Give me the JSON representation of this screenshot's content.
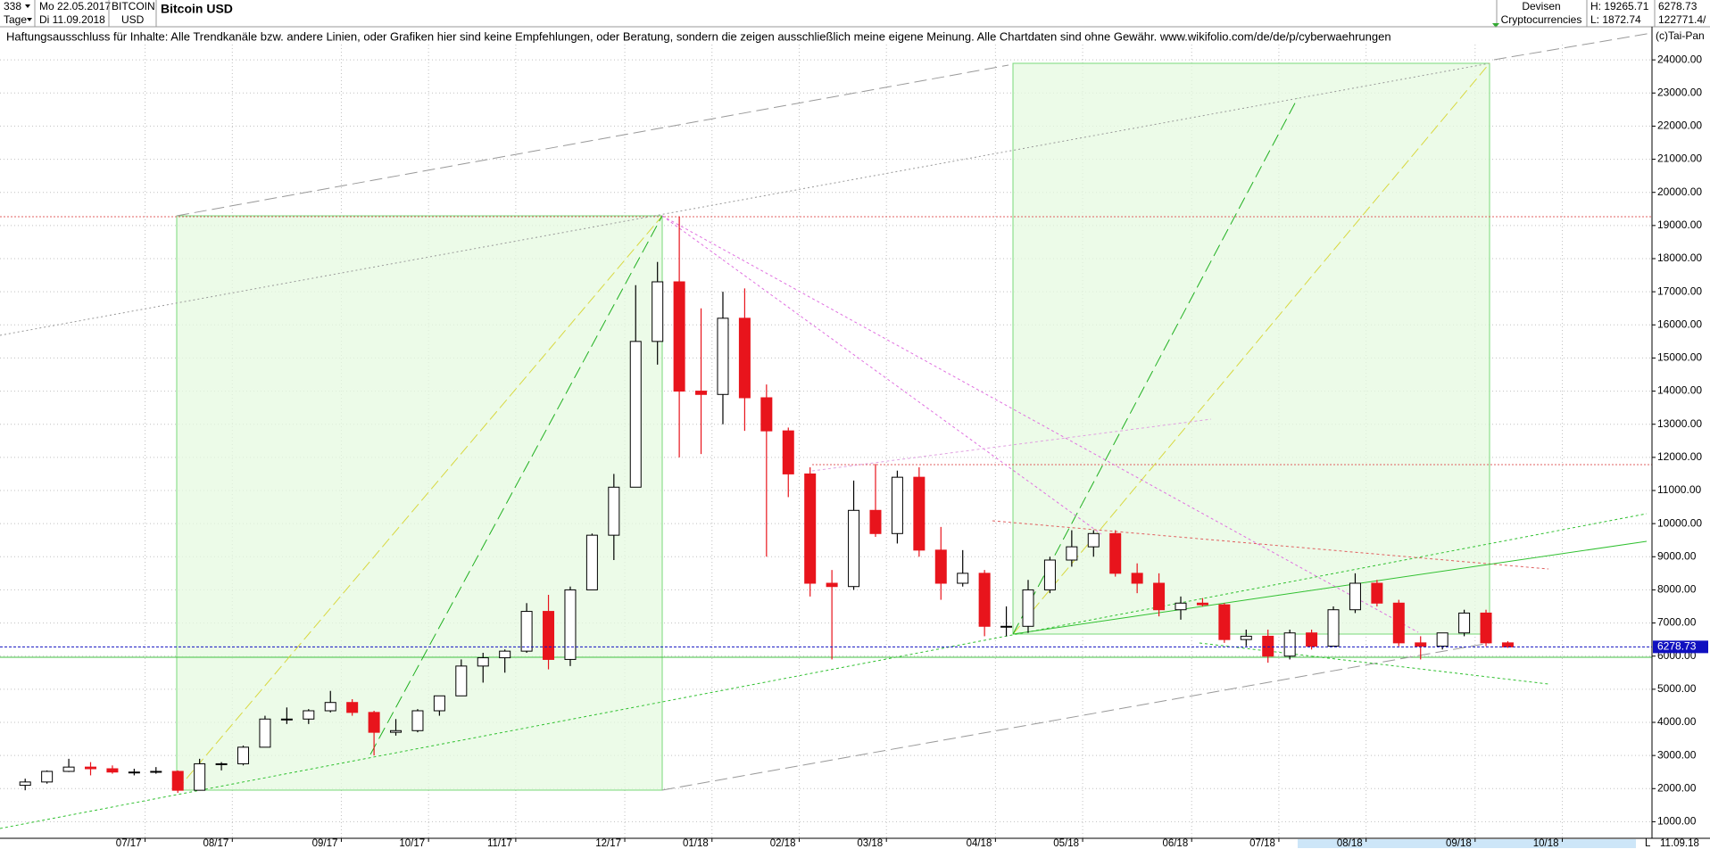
{
  "header": {
    "count": "338",
    "date_from": "Mo 22.05.2017",
    "period": "Tage",
    "date_to": "Di 11.09.2018",
    "symbol": "BITCOIN",
    "currency": "USD",
    "market": "Devisen",
    "group": "Cryptocurrencies",
    "high": "H: 19265.71",
    "low": "L: 1872.74",
    "last": "6278.73",
    "volume": "122771.4/"
  },
  "chart_data": {
    "type": "candlestick",
    "title": "Bitcoin USD",
    "subtitle": "Haftungsausschluss für Inhalte: Alle Trendkanäle bzw. andere Linien, oder Grafiken hier sind keine Empfehlungen, oder Beratung, sondern die zeigen ausschließlich meine eigene Meinung. Alle Chartdaten sind ohne Gewähr.  www.wikifolio.com/de/de/p/cyberwaehrungen",
    "source": "(c)Tai-Pan",
    "categories": [
      null,
      null,
      null,
      null,
      null,
      null,
      "07/17",
      null,
      null,
      null,
      "08/17",
      null,
      null,
      null,
      null,
      "09/17",
      null,
      null,
      null,
      "10/17",
      null,
      null,
      null,
      "11/17",
      null,
      null,
      null,
      null,
      "12/17",
      null,
      null,
      null,
      "01/18",
      null,
      null,
      null,
      "02/18",
      null,
      null,
      null,
      "03/18",
      null,
      null,
      null,
      null,
      "04/18",
      null,
      null,
      null,
      "05/18",
      null,
      null,
      null,
      null,
      "06/18",
      null,
      null,
      null,
      "07/18",
      null,
      null,
      null,
      "08/18",
      null,
      null,
      null,
      null,
      "09/18",
      null,
      null,
      null,
      "10/18"
    ],
    "open": [
      2100,
      2200,
      2520,
      2650,
      2600,
      2500,
      2500,
      2520,
      1950,
      2750,
      2750,
      3250,
      4100,
      4100,
      4350,
      4600,
      4300,
      3700,
      3750,
      4350,
      4800,
      5700,
      5950,
      6150,
      7350,
      5900,
      8000,
      9650,
      11100,
      15500,
      17300,
      14000,
      13900,
      16200,
      13800,
      12800,
      11500,
      8200,
      8100,
      10400,
      9700,
      11400,
      9200,
      8200,
      8500,
      6900,
      6900,
      8000,
      8900,
      9300,
      9700,
      8500,
      8200,
      7400,
      7600,
      7550,
      6500,
      6600,
      6000,
      6700,
      6300,
      7400,
      8200,
      7600,
      6400,
      6300,
      6700,
      7300,
      6400,
      null,
      null,
      null
    ],
    "high": [
      2300,
      2550,
      2900,
      2800,
      2700,
      2600,
      2650,
      2550,
      2900,
      2800,
      3300,
      4200,
      4450,
      4400,
      4950,
      4700,
      4350,
      4100,
      4400,
      4800,
      5900,
      6100,
      6200,
      7600,
      7850,
      8100,
      9700,
      11500,
      17200,
      17900,
      19265.71,
      16500,
      17000,
      17100,
      14200,
      12900,
      11700,
      8600,
      11300,
      11800,
      11600,
      11700,
      9900,
      9200,
      8600,
      7500,
      8300,
      9000,
      9800,
      9800,
      9800,
      8800,
      8500,
      7800,
      7750,
      7600,
      6800,
      6800,
      6800,
      6800,
      7500,
      8500,
      8300,
      7700,
      6600,
      6700,
      7400,
      7400,
      6450,
      null,
      null,
      null
    ],
    "low": [
      1950,
      2150,
      2500,
      2400,
      2450,
      2400,
      2450,
      1872.74,
      1950,
      2550,
      2700,
      3250,
      3950,
      3950,
      4300,
      4200,
      3000,
      3600,
      3700,
      4200,
      4800,
      5200,
      5500,
      6100,
      5600,
      5700,
      8000,
      8900,
      11100,
      14800,
      12000,
      12100,
      13000,
      12800,
      9000,
      10800,
      7800,
      5900,
      8000,
      9600,
      9400,
      9000,
      7700,
      8100,
      6600,
      6600,
      6700,
      7900,
      8700,
      9000,
      8400,
      7900,
      7200,
      7100,
      7500,
      6400,
      6300,
      5800,
      5900,
      6200,
      6300,
      7300,
      7500,
      6300,
      5900,
      6200,
      6600,
      6300,
      6250,
      null,
      null,
      null
    ],
    "close": [
      2200,
      2520,
      2650,
      2600,
      2500,
      2500,
      2520,
      1950,
      2750,
      2750,
      3250,
      4100,
      4100,
      4350,
      4600,
      4300,
      3700,
      3750,
      4350,
      4800,
      5700,
      5950,
      6150,
      7350,
      5900,
      8000,
      9650,
      11100,
      15500,
      17300,
      14000,
      13900,
      16200,
      13800,
      12800,
      11500,
      8200,
      8100,
      10400,
      9700,
      11400,
      9200,
      8200,
      8500,
      6900,
      6900,
      8000,
      8900,
      9300,
      9700,
      8500,
      8200,
      7400,
      7600,
      7550,
      6500,
      6600,
      6000,
      6700,
      6300,
      7400,
      8200,
      7600,
      6400,
      6300,
      6700,
      7300,
      6400,
      6278.73,
      null,
      null,
      null
    ],
    "up_color": "#000000",
    "down_color": "#e8141c",
    "ylim": [
      500,
      25000
    ],
    "yticks": [
      {
        "value": 1000,
        "label": "1000.00"
      },
      {
        "value": 2000,
        "label": "2000.00"
      },
      {
        "value": 3000,
        "label": "3000.00"
      },
      {
        "value": 4000,
        "label": "4000.00"
      },
      {
        "value": 5000,
        "label": "5000.00"
      },
      {
        "value": 6000,
        "label": "6000.00"
      },
      {
        "value": 7000,
        "label": "7000.00"
      },
      {
        "value": 8000,
        "label": "8000.00"
      },
      {
        "value": 9000,
        "label": "9000.00"
      },
      {
        "value": 10000,
        "label": "10000.00"
      },
      {
        "value": 11000,
        "label": "11000.00"
      },
      {
        "value": 12000,
        "label": "12000.00"
      },
      {
        "value": 13000,
        "label": "13000.00"
      },
      {
        "value": 14000,
        "label": "14000.00"
      },
      {
        "value": 15000,
        "label": "15000.00"
      },
      {
        "value": 16000,
        "label": "16000.00"
      },
      {
        "value": 17000,
        "label": "17000.00"
      },
      {
        "value": 18000,
        "label": "18000.00"
      },
      {
        "value": 19000,
        "label": "19000.00"
      },
      {
        "value": 20000,
        "label": "20000.00"
      },
      {
        "value": 21000,
        "label": "21000.00"
      },
      {
        "value": 22000,
        "label": "22000.00"
      },
      {
        "value": 23000,
        "label": "23000.00"
      },
      {
        "value": 24000,
        "label": "24000.00"
      }
    ],
    "grid": true,
    "reference_lines": [
      {
        "value": 6278.73,
        "color": "#1010c0"
      }
    ]
  },
  "footer": {
    "date": "11.09.18",
    "scale": "L"
  }
}
